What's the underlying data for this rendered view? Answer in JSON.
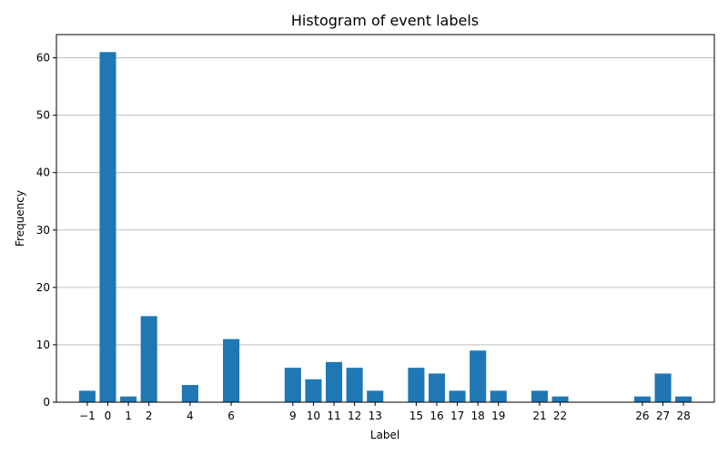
{
  "chart_data": {
    "type": "bar",
    "title": "Histogram of event labels",
    "xlabel": "Label",
    "ylabel": "Frequency",
    "categories": [
      -1,
      0,
      1,
      2,
      4,
      6,
      9,
      10,
      11,
      12,
      13,
      15,
      16,
      17,
      18,
      19,
      21,
      22,
      26,
      27,
      28
    ],
    "tick_labels": [
      "−1",
      "0",
      "1",
      "2",
      "4",
      "6",
      "9",
      "10",
      "11",
      "12",
      "13",
      "15",
      "16",
      "17",
      "18",
      "19",
      "21",
      "22",
      "26",
      "27",
      "28"
    ],
    "values": [
      2,
      61,
      1,
      15,
      3,
      11,
      6,
      4,
      7,
      6,
      2,
      6,
      5,
      2,
      9,
      2,
      2,
      1,
      1,
      5,
      1
    ],
    "xlim": [
      -2.5,
      29.5
    ],
    "ylim": [
      0,
      64.05
    ],
    "yticks": [
      0,
      10,
      20,
      30,
      40,
      50,
      60
    ],
    "grid": "y",
    "bar_color": "#1f77b4"
  }
}
